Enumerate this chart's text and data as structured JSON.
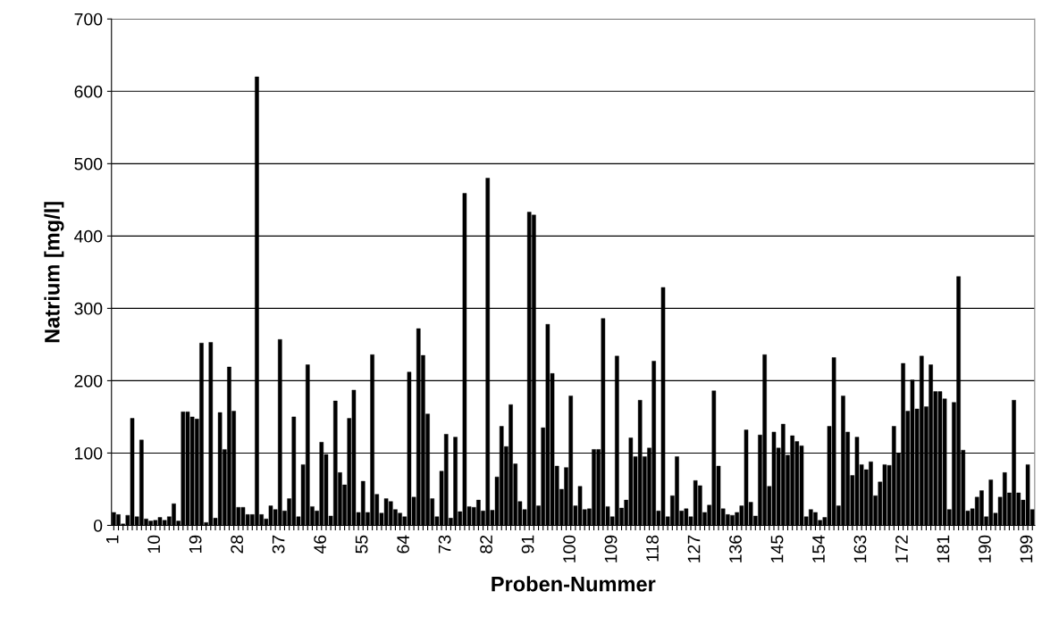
{
  "chart_data": {
    "type": "bar",
    "xlabel": "Proben-Nummer",
    "ylabel": "Natrium [mg/l]",
    "categories": [
      "1",
      null,
      null,
      null,
      null,
      null,
      null,
      null,
      null,
      "10",
      null,
      null,
      null,
      null,
      null,
      null,
      null,
      null,
      "19",
      null,
      null,
      null,
      null,
      null,
      null,
      null,
      null,
      "28",
      null,
      null,
      null,
      null,
      null,
      null,
      null,
      null,
      "37",
      null,
      null,
      null,
      null,
      null,
      null,
      null,
      null,
      "46",
      null,
      null,
      null,
      null,
      null,
      null,
      null,
      null,
      "55",
      null,
      null,
      null,
      null,
      null,
      null,
      null,
      null,
      "64",
      null,
      null,
      null,
      null,
      null,
      null,
      null,
      null,
      "73",
      null,
      null,
      null,
      null,
      null,
      null,
      null,
      null,
      "82",
      null,
      null,
      null,
      null,
      null,
      null,
      null,
      null,
      "91",
      null,
      null,
      null,
      null,
      null,
      null,
      null,
      null,
      "100",
      null,
      null,
      null,
      null,
      null,
      null,
      null,
      null,
      "109",
      null,
      null,
      null,
      null,
      null,
      null,
      null,
      null,
      "118",
      null,
      null,
      null,
      null,
      null,
      null,
      null,
      null,
      "127",
      null,
      null,
      null,
      null,
      null,
      null,
      null,
      null,
      "136",
      null,
      null,
      null,
      null,
      null,
      null,
      null,
      null,
      "145",
      null,
      null,
      null,
      null,
      null,
      null,
      null,
      null,
      "154",
      null,
      null,
      null,
      null,
      null,
      null,
      null,
      null,
      "163",
      null,
      null,
      null,
      null,
      null,
      null,
      null,
      null,
      "172",
      null,
      null,
      null,
      null,
      null,
      null,
      null,
      null,
      "181",
      null,
      null,
      null,
      null,
      null,
      null,
      null,
      null,
      "190",
      null,
      null,
      null,
      null,
      null,
      null,
      null,
      null,
      "199",
      null
    ],
    "values": [
      18,
      15,
      2,
      14,
      148,
      12,
      118,
      9,
      6,
      7,
      11,
      7,
      12,
      30,
      6,
      157,
      157,
      150,
      147,
      252,
      4,
      253,
      10,
      156,
      105,
      219,
      158,
      25,
      25,
      15,
      15,
      620,
      15,
      9,
      27,
      22,
      257,
      20,
      37,
      150,
      12,
      84,
      222,
      26,
      20,
      115,
      98,
      13,
      172,
      73,
      56,
      148,
      187,
      18,
      61,
      18,
      236,
      43,
      17,
      37,
      33,
      22,
      17,
      12,
      212,
      39,
      272,
      235,
      154,
      37,
      12,
      75,
      126,
      10,
      122,
      19,
      459,
      26,
      25,
      35,
      20,
      480,
      21,
      67,
      137,
      109,
      167,
      85,
      33,
      22,
      433,
      429,
      27,
      135,
      278,
      210,
      82,
      50,
      80,
      179,
      27,
      54,
      22,
      23,
      105,
      105,
      286,
      26,
      12,
      234,
      24,
      35,
      121,
      95,
      173,
      95,
      107,
      227,
      20,
      329,
      12,
      41,
      95,
      20,
      23,
      12,
      62,
      55,
      18,
      28,
      186,
      82,
      23,
      15,
      14,
      18,
      27,
      132,
      32,
      13,
      125,
      236,
      54,
      129,
      107,
      140,
      97,
      124,
      116,
      110,
      12,
      22,
      18,
      7,
      11,
      137,
      232,
      27,
      179,
      129,
      69,
      122,
      84,
      77,
      88,
      41,
      60,
      84,
      83,
      137,
      100,
      224,
      158,
      201,
      161,
      234,
      164,
      222,
      185,
      185,
      175,
      22,
      170,
      344,
      104,
      20,
      23,
      39,
      48,
      12,
      63,
      17,
      39,
      73,
      45,
      173,
      45,
      35,
      84,
      22
    ],
    "color": "#000000",
    "ylim": [
      0,
      700
    ],
    "yticks": [
      0,
      100,
      200,
      300,
      400,
      500,
      600,
      700
    ],
    "grid": "y",
    "legend": false
  }
}
